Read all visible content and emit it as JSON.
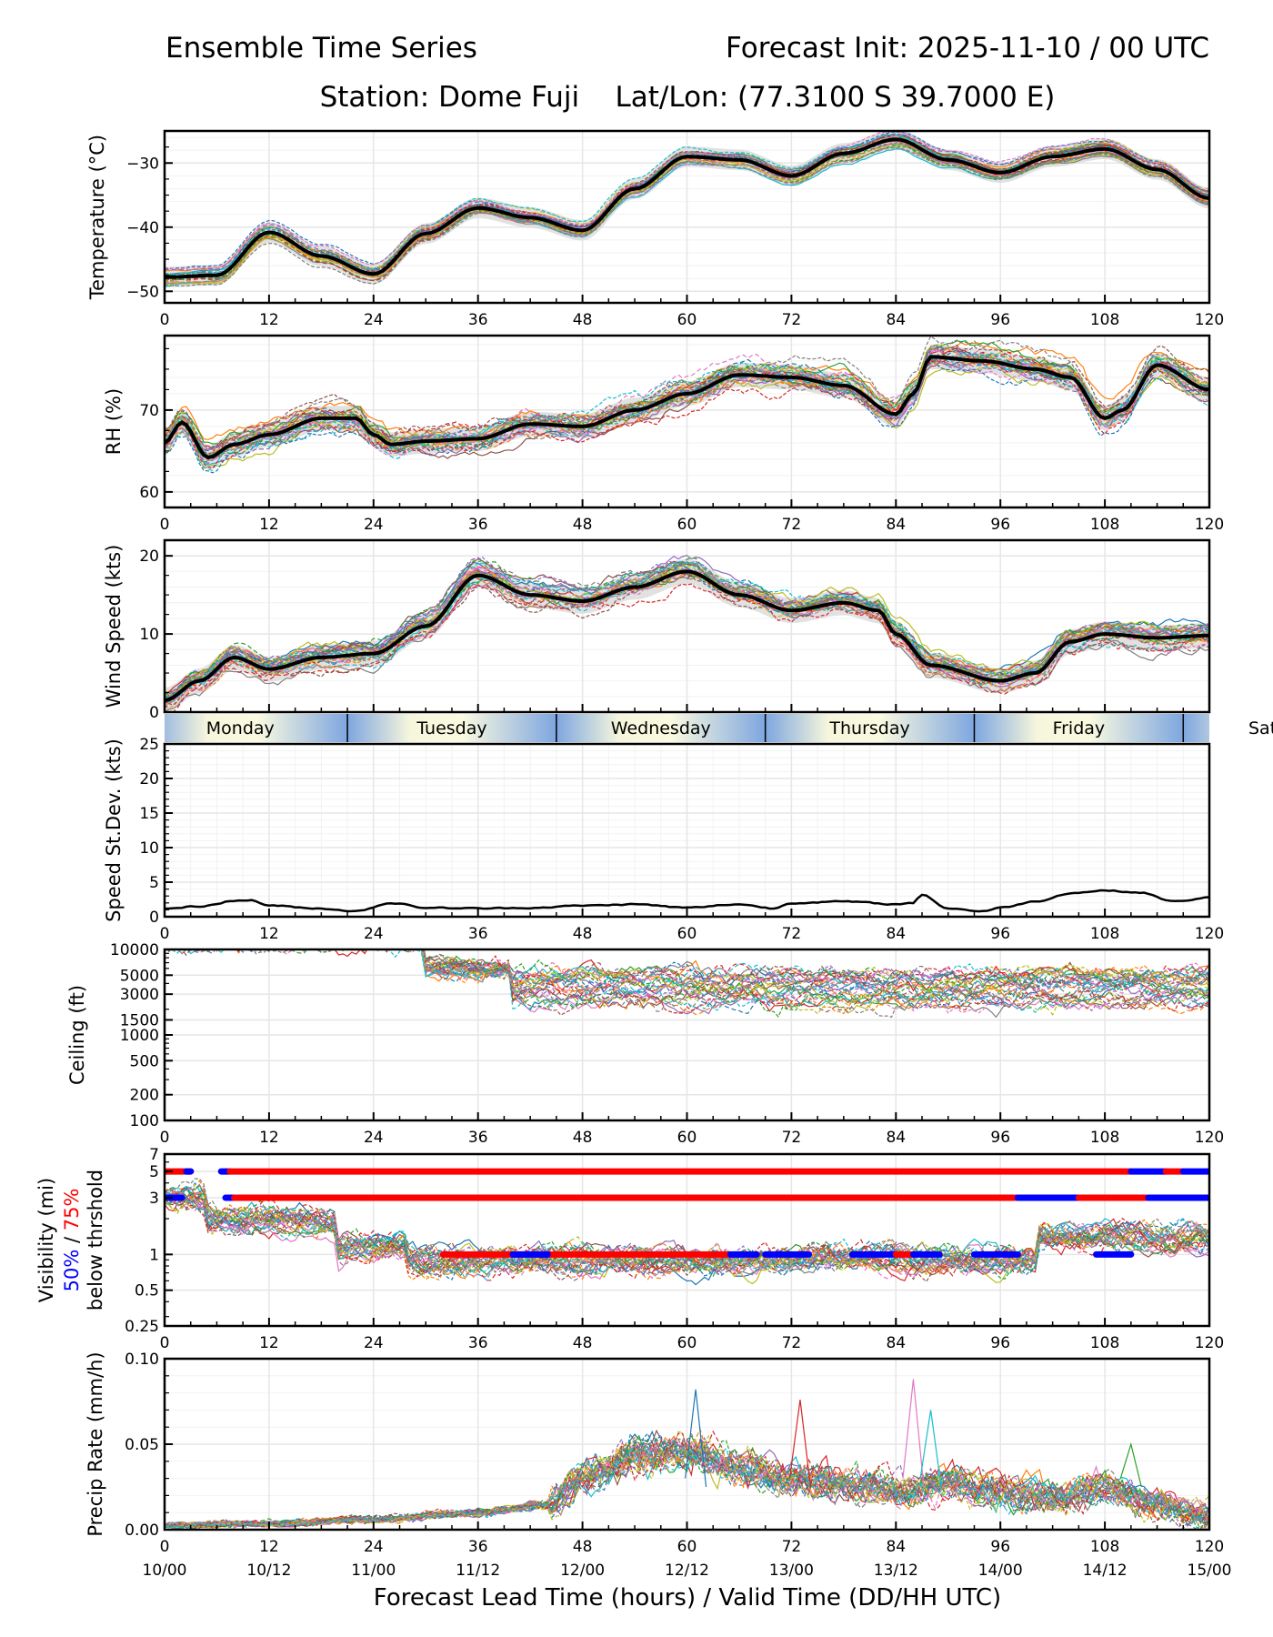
{
  "header": {
    "title_left": "Ensemble Time Series",
    "title_right": "Forecast Init: 2025-11-10 / 00 UTC",
    "subtitle": "Station: Dome Fuji    Lat/Lon: (77.3100 S 39.7000 E)"
  },
  "colors": {
    "mean": "#000000",
    "spread": "#d9d9d9",
    "grid": "#e6e6e6",
    "vis_50": "#0000ff",
    "vis_75": "#ff0000",
    "day_mid": "#fafae0",
    "day_edge": "#7ea6e0",
    "members": [
      "#1f77b4",
      "#ff7f0e",
      "#2ca02c",
      "#d62728",
      "#9467bd",
      "#8c564b",
      "#e377c2",
      "#7f7f7f",
      "#bcbd22",
      "#17becf"
    ]
  },
  "chart_data": [
    {
      "id": "temperature",
      "type": "line",
      "ylabel": "Temperature (°C)",
      "ylim": [
        -51.8,
        -25.0
      ],
      "yticks": [
        -30,
        -40,
        -50
      ],
      "ytick_labels": [
        "−30",
        "−40",
        "−50"
      ],
      "grid": true,
      "x": [
        0,
        6,
        12,
        18,
        24,
        30,
        36,
        42,
        48,
        54,
        60,
        66,
        72,
        78,
        84,
        90,
        96,
        102,
        108,
        114,
        120
      ],
      "mean": [
        -47.8,
        -47.5,
        -40.8,
        -44.5,
        -47.3,
        -41.0,
        -37.0,
        -38.5,
        -40.5,
        -34.0,
        -29.0,
        -29.5,
        -32.0,
        -28.5,
        -26.3,
        -29.5,
        -31.5,
        -29.0,
        -27.8,
        -31.0,
        -35.5
      ],
      "spread": 1.6,
      "members": 30
    },
    {
      "id": "rh",
      "type": "line",
      "ylabel": "RH (%)",
      "ylim": [
        58.1,
        79.1
      ],
      "yticks": [
        70,
        60
      ],
      "ytick_labels": [
        "70",
        "60"
      ],
      "grid": true,
      "x": [
        0,
        2,
        5,
        8,
        12,
        18,
        22,
        24,
        26,
        30,
        36,
        42,
        48,
        54,
        60,
        66,
        72,
        78,
        84,
        86,
        88,
        94,
        100,
        104,
        108,
        110,
        114,
        120
      ],
      "mean": [
        66,
        68.5,
        64.2,
        65.8,
        67,
        69,
        69,
        67,
        65.8,
        66.2,
        66.5,
        68.3,
        68,
        70,
        72,
        74.3,
        74,
        73,
        69.5,
        72,
        76.5,
        76,
        75,
        74,
        69,
        70,
        75.5,
        72.5
      ],
      "spread": 1.5,
      "members": 30
    },
    {
      "id": "wind_speed",
      "type": "line",
      "ylabel": "Wind Speed (kts)",
      "ylim": [
        0,
        22
      ],
      "yticks": [
        0,
        10,
        20
      ],
      "ytick_labels": [
        "0",
        "10",
        "20"
      ],
      "grid": true,
      "x": [
        0,
        4,
        8,
        12,
        18,
        24,
        30,
        36,
        42,
        48,
        54,
        60,
        66,
        72,
        78,
        82,
        84,
        88,
        96,
        100,
        104,
        108,
        114,
        120
      ],
      "mean": [
        1.5,
        4,
        7,
        5.5,
        7,
        7.5,
        11,
        17.5,
        15,
        14.2,
        16,
        18,
        15,
        13,
        14,
        13,
        10,
        6,
        4,
        5,
        9,
        10,
        9.5,
        9.8
      ],
      "spread": 1.6,
      "members": 30
    },
    {
      "id": "speed_stdev",
      "type": "line",
      "ylabel": "Speed St.Dev. (kts)",
      "ylim": [
        0,
        25
      ],
      "yticks": [
        0,
        5,
        10,
        15,
        20,
        25
      ],
      "ytick_labels": [
        "0",
        "5",
        "10",
        "15",
        "20",
        "25"
      ],
      "grid": true,
      "x": [
        0,
        4,
        8,
        10,
        12,
        18,
        22,
        26,
        30,
        36,
        42,
        48,
        54,
        60,
        66,
        70,
        72,
        78,
        84,
        86,
        87,
        90,
        94,
        96,
        100,
        104,
        108,
        112,
        116,
        120
      ],
      "values": [
        1.2,
        1.5,
        2.3,
        2.4,
        1.6,
        1.2,
        0.8,
        2.0,
        1.3,
        1.2,
        1.3,
        1.6,
        1.8,
        1.3,
        1.8,
        1.2,
        2.0,
        2.2,
        1.8,
        2.0,
        3.2,
        1.2,
        0.8,
        1.3,
        2.2,
        3.4,
        3.8,
        3.5,
        2.2,
        2.8
      ]
    },
    {
      "id": "ceiling",
      "type": "line",
      "ylabel": "Ceiling (ft)",
      "yscale": "log",
      "ylim": [
        100,
        10000
      ],
      "yticks": [
        10000,
        5000,
        3000,
        1500,
        1000,
        500,
        200,
        100
      ],
      "ytick_labels": [
        "10000",
        "5000",
        "3000",
        "1500",
        "1000",
        "500",
        "200",
        "100"
      ],
      "grid": true,
      "typical_range_ft": [
        1500,
        10000
      ],
      "members": 30
    },
    {
      "id": "visibility",
      "type": "line",
      "ylabel_lines": [
        "Visibility (mi)",
        "50%",
        "/",
        "75%",
        "below thrshold"
      ],
      "yscale": "log",
      "ylim": [
        0.25,
        7
      ],
      "yticks": [
        7,
        5,
        3,
        1,
        0.5,
        0.25
      ],
      "ytick_labels": [
        "7",
        "5",
        "3",
        "1",
        "0.5",
        "0.25"
      ],
      "grid": true,
      "thresholds": [
        5,
        3,
        1
      ],
      "threshold_segments": {
        "5": [
          {
            "from": 0,
            "to": 3,
            "pct": 75
          },
          {
            "from": 2.5,
            "to": 3,
            "pct": 50
          },
          {
            "from": 6.5,
            "to": 7.5,
            "pct": 50
          },
          {
            "from": 7.5,
            "to": 111,
            "pct": 75
          },
          {
            "from": 111,
            "to": 115,
            "pct": 50
          },
          {
            "from": 115,
            "to": 117,
            "pct": 75
          },
          {
            "from": 117,
            "to": 120,
            "pct": 50
          }
        ],
        "3": [
          {
            "from": 0,
            "to": 2,
            "pct": 50
          },
          {
            "from": 7,
            "to": 13,
            "pct": 50
          },
          {
            "from": 8,
            "to": 16,
            "pct": 75
          },
          {
            "from": 16,
            "to": 98,
            "pct": 75
          },
          {
            "from": 98,
            "to": 105,
            "pct": 50
          },
          {
            "from": 105,
            "to": 113,
            "pct": 75
          },
          {
            "from": 113,
            "to": 120,
            "pct": 50
          }
        ],
        "1": [
          {
            "from": 32,
            "to": 65,
            "pct": 75
          },
          {
            "from": 40,
            "to": 44,
            "pct": 50
          },
          {
            "from": 65,
            "to": 68,
            "pct": 50
          },
          {
            "from": 69,
            "to": 74,
            "pct": 50
          },
          {
            "from": 79,
            "to": 84,
            "pct": 50
          },
          {
            "from": 84,
            "to": 86,
            "pct": 75
          },
          {
            "from": 86,
            "to": 89,
            "pct": 50
          },
          {
            "from": 93,
            "to": 98,
            "pct": 50
          },
          {
            "from": 107,
            "to": 111,
            "pct": 50
          }
        ]
      },
      "members": 30
    },
    {
      "id": "precip_rate",
      "type": "line",
      "ylabel": "Precip Rate (mm/h)",
      "ylim": [
        0,
        0.1
      ],
      "yticks": [
        0.1,
        0.05,
        0.0
      ],
      "ytick_labels": [
        "0.10",
        "0.05",
        "0.00"
      ],
      "grid": true,
      "x": [
        0,
        12,
        24,
        36,
        44,
        48,
        54,
        60,
        66,
        72,
        78,
        84,
        90,
        96,
        102,
        108,
        114,
        120
      ],
      "typical": [
        0.002,
        0.003,
        0.005,
        0.008,
        0.012,
        0.025,
        0.035,
        0.038,
        0.03,
        0.025,
        0.022,
        0.02,
        0.022,
        0.018,
        0.015,
        0.02,
        0.012,
        0.006
      ],
      "peaks": [
        {
          "x": 61,
          "y": 0.082
        },
        {
          "x": 73,
          "y": 0.076
        },
        {
          "x": 86,
          "y": 0.088
        },
        {
          "x": 88,
          "y": 0.07
        },
        {
          "x": 111,
          "y": 0.05
        }
      ],
      "members": 30
    }
  ],
  "x_axis": {
    "xlim": [
      0,
      120
    ],
    "ticks": [
      0,
      12,
      24,
      36,
      48,
      60,
      72,
      84,
      96,
      108,
      120
    ],
    "tick_labels": [
      "0",
      "12",
      "24",
      "36",
      "48",
      "60",
      "72",
      "84",
      "96",
      "108",
      "120"
    ],
    "date_labels": [
      "10/00",
      "10/12",
      "11/00",
      "11/12",
      "12/00",
      "12/12",
      "13/00",
      "13/12",
      "14/00",
      "14/12",
      "15/00"
    ],
    "label": "Forecast Lead Time (hours) / Valid Time (DD/HH UTC)"
  },
  "day_band": {
    "days": [
      {
        "label": "Monday",
        "start": -2,
        "end": 21
      },
      {
        "label": "Tuesday",
        "start": 21,
        "end": 45
      },
      {
        "label": "Wednesday",
        "start": 45,
        "end": 69
      },
      {
        "label": "Thursday",
        "start": 69,
        "end": 93
      },
      {
        "label": "Friday",
        "start": 93,
        "end": 117
      },
      {
        "label": "Saturday",
        "start": 117,
        "end": 141
      }
    ]
  }
}
